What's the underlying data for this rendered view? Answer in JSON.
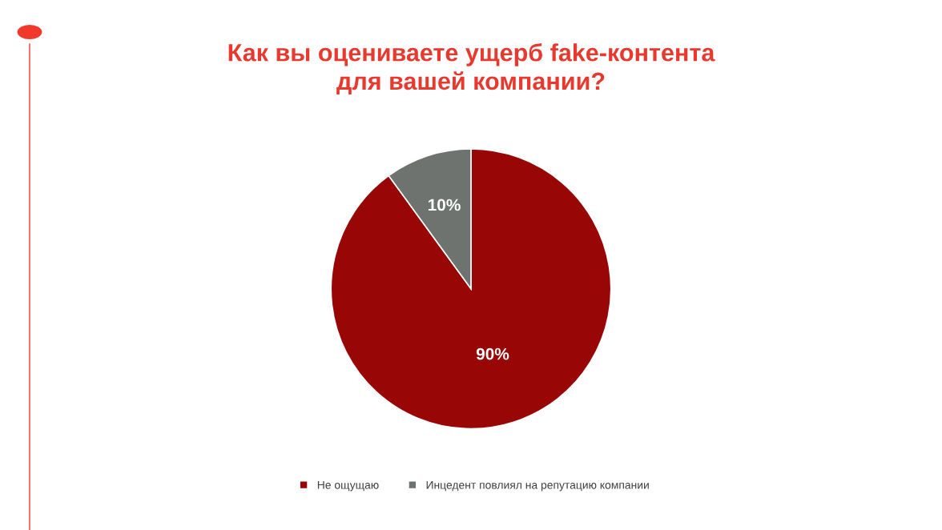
{
  "chart_data": {
    "type": "pie",
    "title": "Как вы оцениваете ущерб fake-контента\nдля вашей компании?",
    "categories": [
      "Не ощущаю",
      "Инцедент повлиял на репутацию компании"
    ],
    "values": [
      90,
      10
    ],
    "colors": [
      "#990606",
      "#6e7370"
    ],
    "value_labels": [
      "90%",
      "10%"
    ],
    "legend": "bottom"
  }
}
